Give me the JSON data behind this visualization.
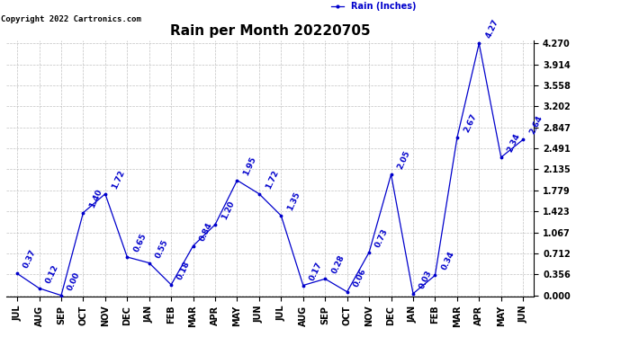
{
  "title": "Rain per Month 20220705",
  "copyright": "Copyright 2022 Cartronics.com",
  "legend_label": "Rain (Inches)",
  "x_labels": [
    "JUL",
    "AUG",
    "SEP",
    "OCT",
    "NOV",
    "DEC",
    "JAN",
    "FEB",
    "MAR",
    "APR",
    "MAY",
    "JUN",
    "JUL",
    "AUG",
    "SEP",
    "OCT",
    "NOV",
    "DEC",
    "JAN",
    "FEB",
    "MAR",
    "APR",
    "MAY",
    "JUN"
  ],
  "y_values": [
    0.37,
    0.12,
    0.0,
    1.4,
    1.72,
    0.65,
    0.55,
    0.18,
    0.84,
    1.2,
    1.95,
    1.72,
    1.35,
    0.17,
    0.28,
    0.06,
    0.73,
    2.05,
    0.03,
    0.34,
    2.67,
    4.27,
    2.34,
    2.64
  ],
  "line_color": "#0000cc",
  "marker_color": "#0000cc",
  "background_color": "#ffffff",
  "grid_color": "#bbbbbb",
  "title_fontsize": 11,
  "label_fontsize": 7,
  "annotation_fontsize": 6.5,
  "copyright_fontsize": 6.5,
  "y_max": 4.27,
  "y_min": 0.0,
  "y_ticks": [
    0.0,
    0.356,
    0.712,
    1.067,
    1.423,
    1.779,
    2.135,
    2.491,
    2.847,
    3.202,
    3.558,
    3.914,
    4.27
  ]
}
